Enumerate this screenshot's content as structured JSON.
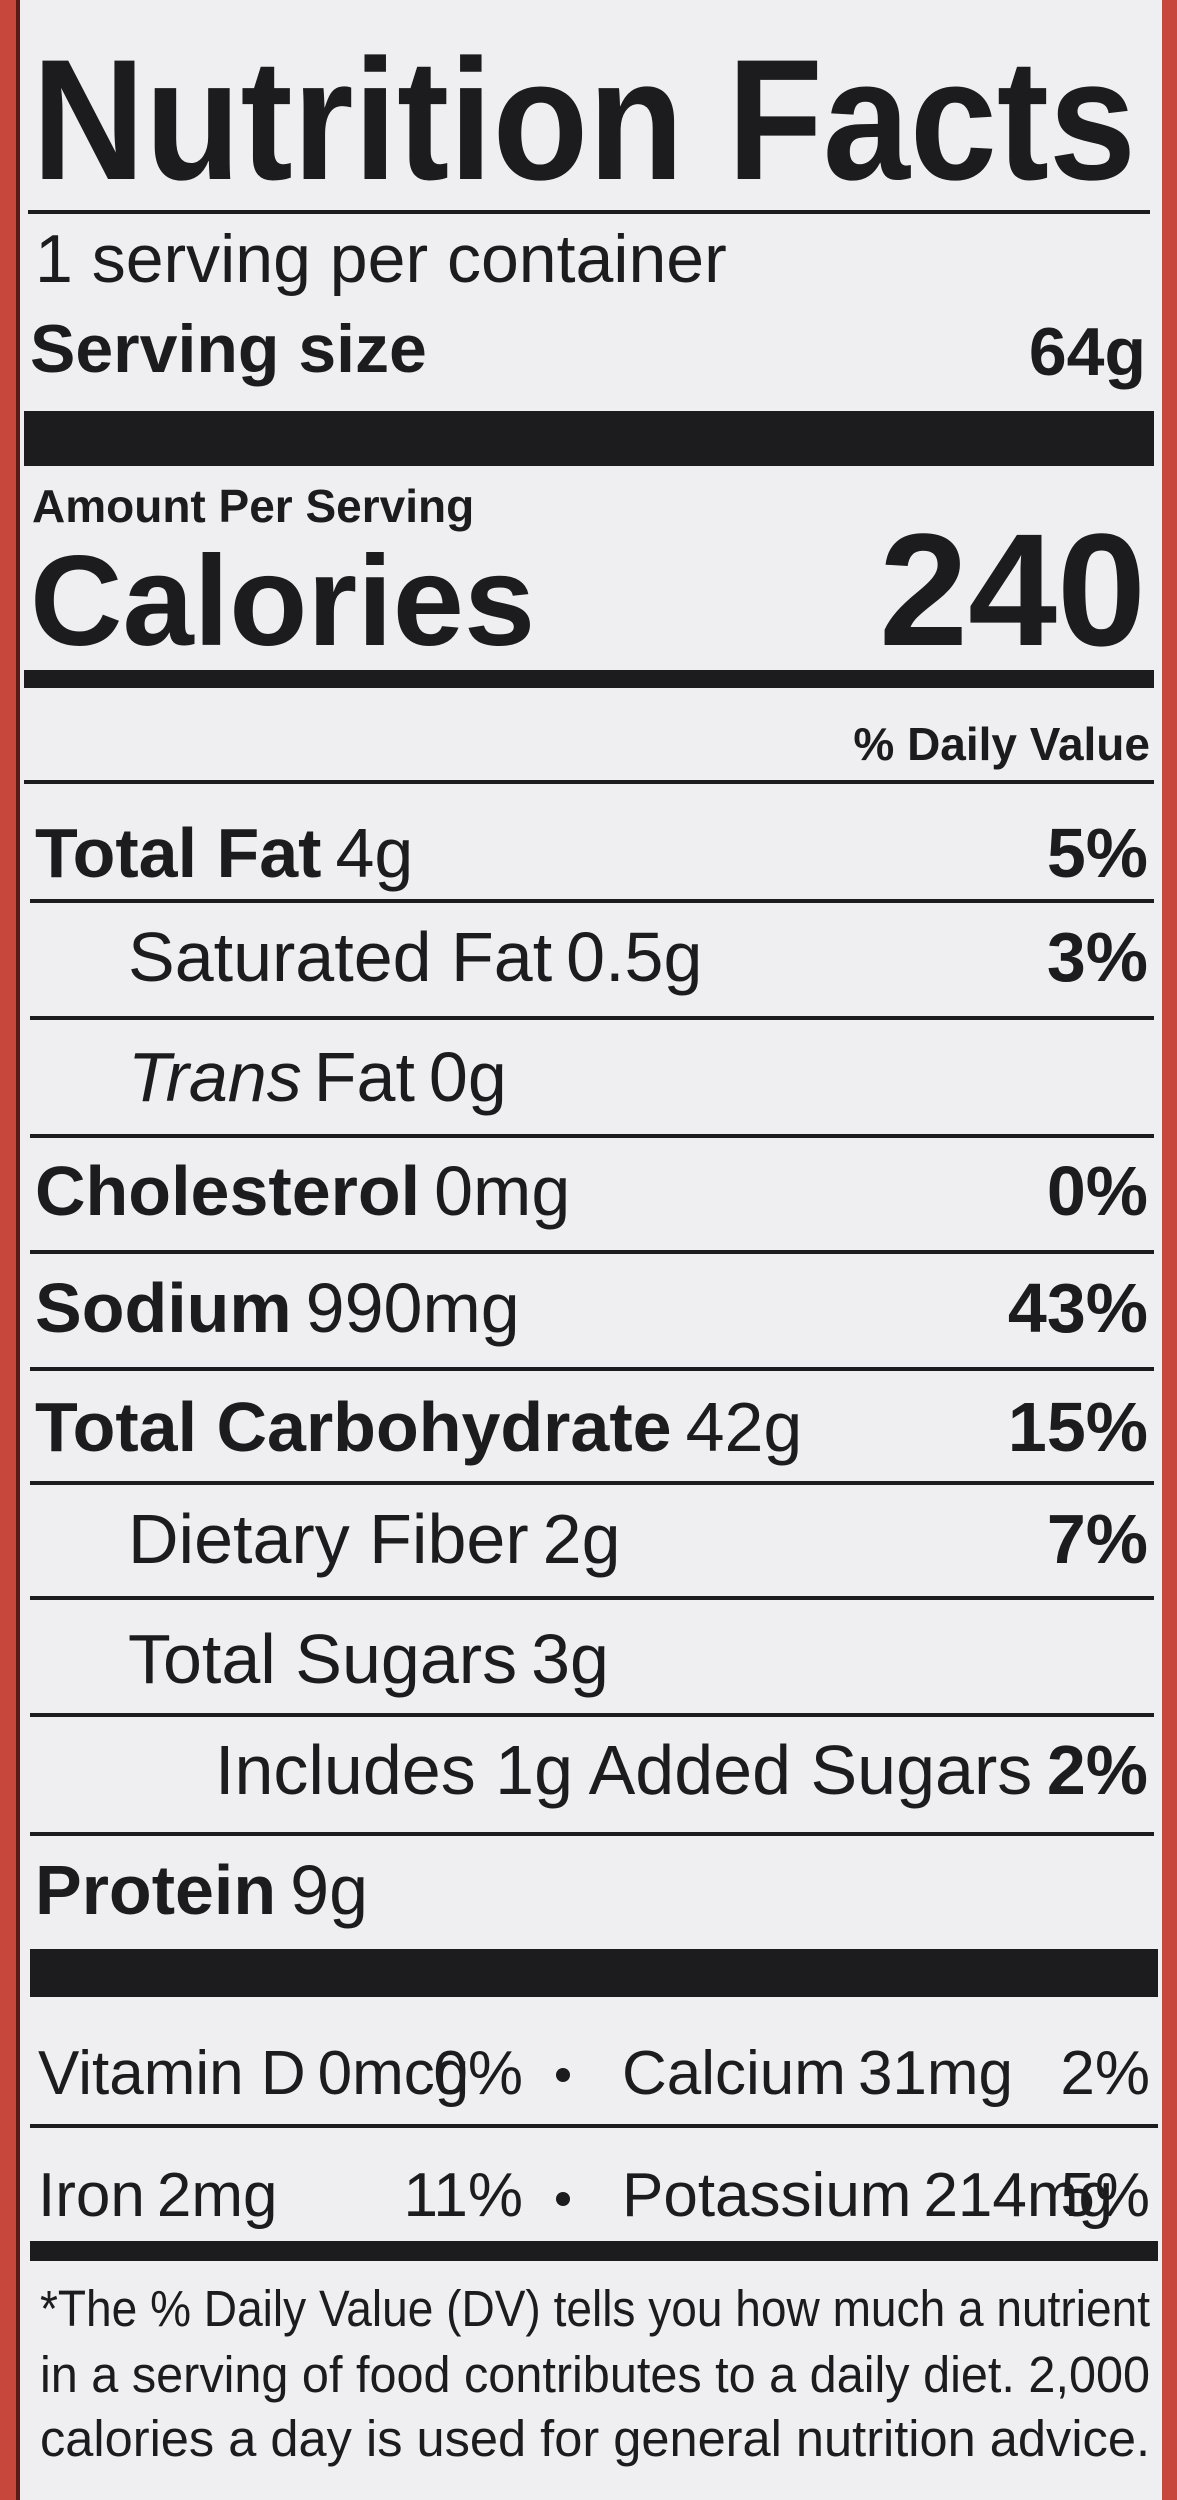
{
  "header": {
    "title": "Nutrition Facts",
    "servings": "1 serving per container",
    "serving_size_label": "Serving size",
    "serving_size": "64g"
  },
  "calories": {
    "amount_label": "Amount Per Serving",
    "label": "Calories",
    "value": "240"
  },
  "daily_value_header": "% Daily Value",
  "nutrients": [
    {
      "name": "Total Fat",
      "amount": "4g",
      "dv": "5%"
    },
    {
      "name": "Saturated Fat",
      "amount": "0.5g",
      "dv": "3%"
    },
    {
      "prefix": "Trans",
      "name": "Fat",
      "amount": "0g"
    },
    {
      "name": "Cholesterol",
      "amount": "0mg",
      "dv": "0%"
    },
    {
      "name": "Sodium",
      "amount": "990mg",
      "dv": "43%"
    },
    {
      "name": "Total Carbohydrate",
      "amount": "42g",
      "dv": "15%"
    },
    {
      "name": "Dietary Fiber",
      "amount": "2g",
      "dv": "7%"
    },
    {
      "name": "Total Sugars",
      "amount": "3g"
    },
    {
      "name": "Includes 1g Added Sugars",
      "dv": "2%"
    },
    {
      "name": "Protein",
      "amount": "9g"
    }
  ],
  "vitamins": [
    {
      "name": "Vitamin D",
      "amount": "0mcg",
      "dv": "0%"
    },
    {
      "name": "Calcium",
      "amount": "31mg",
      "dv": "2%"
    },
    {
      "name": "Iron",
      "amount": "2mg",
      "dv": "11%"
    },
    {
      "name": "Potassium",
      "amount": "214mg",
      "dv": "5%"
    }
  ],
  "footnote": [
    "*The % Daily Value (DV) tells you how much a nutrient",
    "in a serving of food contributes to a daily diet. 2,000",
    "calories a day is used for general nutrition advice."
  ]
}
